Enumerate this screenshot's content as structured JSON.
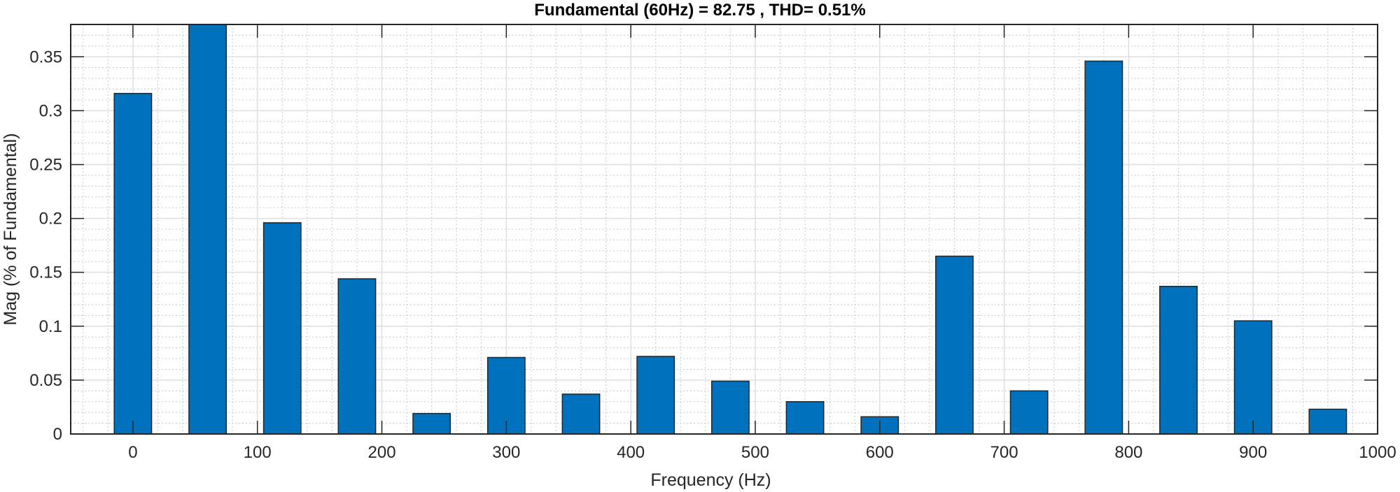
{
  "title": "Fundamental (60Hz) = 82.75 , THD= 0.51%",
  "colors": {
    "bar": "#0072BD",
    "bar_edge": "#262626",
    "grid_major": "#dfdfdf",
    "grid_minor": "#c8c8c8",
    "axis": "#262626"
  },
  "chart_data": {
    "type": "bar",
    "title": "Fundamental (60Hz) = 82.75 , THD= 0.51%",
    "xlabel": "Frequency (Hz)",
    "ylabel": "Mag (% of Fundamental)",
    "xlim": [
      -50,
      1000
    ],
    "ylim": [
      0,
      0.38
    ],
    "bar_width_hz": 30,
    "x": [
      0,
      60,
      120,
      180,
      240,
      300,
      360,
      420,
      480,
      540,
      600,
      660,
      720,
      780,
      840,
      900,
      960
    ],
    "values": [
      0.316,
      100,
      0.196,
      0.144,
      0.019,
      0.071,
      0.037,
      0.072,
      0.049,
      0.03,
      0.016,
      0.165,
      0.04,
      0.346,
      0.137,
      0.105,
      0.023
    ],
    "notes": "60 Hz fundamental bar (100%) is clipped at the top of the axes",
    "xticks": [
      0,
      100,
      200,
      300,
      400,
      500,
      600,
      700,
      800,
      900,
      1000
    ],
    "xtick_labels": [
      "0",
      "100",
      "200",
      "300",
      "400",
      "500",
      "600",
      "700",
      "800",
      "900",
      "1000"
    ],
    "yticks": [
      0,
      0.05,
      0.1,
      0.15,
      0.2,
      0.25,
      0.3,
      0.35
    ],
    "ytick_labels": [
      "0",
      "0.05",
      "0.1",
      "0.15",
      "0.2",
      "0.25",
      "0.3",
      "0.35"
    ],
    "grid": true,
    "minor_grid": true,
    "legend": null
  }
}
